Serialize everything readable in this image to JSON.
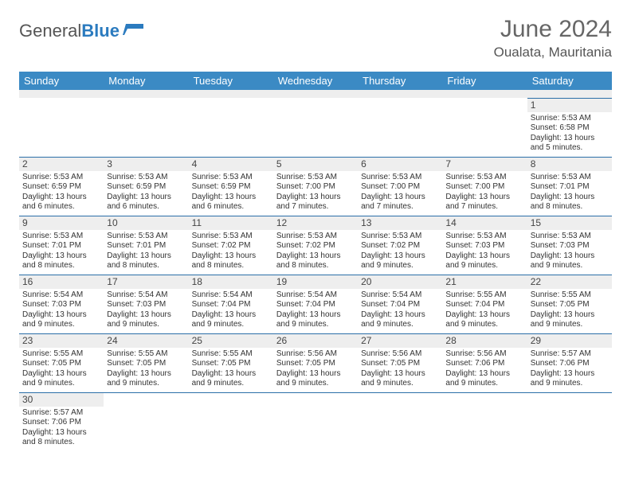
{
  "logo": {
    "text1": "General",
    "text2": "Blue"
  },
  "header": {
    "title": "June 2024",
    "location": "Oualata, Mauritania"
  },
  "colors": {
    "header_bg": "#3b8ac4",
    "header_text": "#ffffff",
    "row_divider": "#2b6fa8",
    "daynum_bg": "#eeeeee",
    "text": "#333333",
    "logo_blue": "#2b7bbf"
  },
  "day_headers": [
    "Sunday",
    "Monday",
    "Tuesday",
    "Wednesday",
    "Thursday",
    "Friday",
    "Saturday"
  ],
  "weeks": [
    [
      null,
      null,
      null,
      null,
      null,
      null,
      {
        "n": "1",
        "sr": "Sunrise: 5:53 AM",
        "ss": "Sunset: 6:58 PM",
        "d1": "Daylight: 13 hours",
        "d2": "and 5 minutes."
      }
    ],
    [
      {
        "n": "2",
        "sr": "Sunrise: 5:53 AM",
        "ss": "Sunset: 6:59 PM",
        "d1": "Daylight: 13 hours",
        "d2": "and 6 minutes."
      },
      {
        "n": "3",
        "sr": "Sunrise: 5:53 AM",
        "ss": "Sunset: 6:59 PM",
        "d1": "Daylight: 13 hours",
        "d2": "and 6 minutes."
      },
      {
        "n": "4",
        "sr": "Sunrise: 5:53 AM",
        "ss": "Sunset: 6:59 PM",
        "d1": "Daylight: 13 hours",
        "d2": "and 6 minutes."
      },
      {
        "n": "5",
        "sr": "Sunrise: 5:53 AM",
        "ss": "Sunset: 7:00 PM",
        "d1": "Daylight: 13 hours",
        "d2": "and 7 minutes."
      },
      {
        "n": "6",
        "sr": "Sunrise: 5:53 AM",
        "ss": "Sunset: 7:00 PM",
        "d1": "Daylight: 13 hours",
        "d2": "and 7 minutes."
      },
      {
        "n": "7",
        "sr": "Sunrise: 5:53 AM",
        "ss": "Sunset: 7:00 PM",
        "d1": "Daylight: 13 hours",
        "d2": "and 7 minutes."
      },
      {
        "n": "8",
        "sr": "Sunrise: 5:53 AM",
        "ss": "Sunset: 7:01 PM",
        "d1": "Daylight: 13 hours",
        "d2": "and 8 minutes."
      }
    ],
    [
      {
        "n": "9",
        "sr": "Sunrise: 5:53 AM",
        "ss": "Sunset: 7:01 PM",
        "d1": "Daylight: 13 hours",
        "d2": "and 8 minutes."
      },
      {
        "n": "10",
        "sr": "Sunrise: 5:53 AM",
        "ss": "Sunset: 7:01 PM",
        "d1": "Daylight: 13 hours",
        "d2": "and 8 minutes."
      },
      {
        "n": "11",
        "sr": "Sunrise: 5:53 AM",
        "ss": "Sunset: 7:02 PM",
        "d1": "Daylight: 13 hours",
        "d2": "and 8 minutes."
      },
      {
        "n": "12",
        "sr": "Sunrise: 5:53 AM",
        "ss": "Sunset: 7:02 PM",
        "d1": "Daylight: 13 hours",
        "d2": "and 8 minutes."
      },
      {
        "n": "13",
        "sr": "Sunrise: 5:53 AM",
        "ss": "Sunset: 7:02 PM",
        "d1": "Daylight: 13 hours",
        "d2": "and 9 minutes."
      },
      {
        "n": "14",
        "sr": "Sunrise: 5:53 AM",
        "ss": "Sunset: 7:03 PM",
        "d1": "Daylight: 13 hours",
        "d2": "and 9 minutes."
      },
      {
        "n": "15",
        "sr": "Sunrise: 5:53 AM",
        "ss": "Sunset: 7:03 PM",
        "d1": "Daylight: 13 hours",
        "d2": "and 9 minutes."
      }
    ],
    [
      {
        "n": "16",
        "sr": "Sunrise: 5:54 AM",
        "ss": "Sunset: 7:03 PM",
        "d1": "Daylight: 13 hours",
        "d2": "and 9 minutes."
      },
      {
        "n": "17",
        "sr": "Sunrise: 5:54 AM",
        "ss": "Sunset: 7:03 PM",
        "d1": "Daylight: 13 hours",
        "d2": "and 9 minutes."
      },
      {
        "n": "18",
        "sr": "Sunrise: 5:54 AM",
        "ss": "Sunset: 7:04 PM",
        "d1": "Daylight: 13 hours",
        "d2": "and 9 minutes."
      },
      {
        "n": "19",
        "sr": "Sunrise: 5:54 AM",
        "ss": "Sunset: 7:04 PM",
        "d1": "Daylight: 13 hours",
        "d2": "and 9 minutes."
      },
      {
        "n": "20",
        "sr": "Sunrise: 5:54 AM",
        "ss": "Sunset: 7:04 PM",
        "d1": "Daylight: 13 hours",
        "d2": "and 9 minutes."
      },
      {
        "n": "21",
        "sr": "Sunrise: 5:55 AM",
        "ss": "Sunset: 7:04 PM",
        "d1": "Daylight: 13 hours",
        "d2": "and 9 minutes."
      },
      {
        "n": "22",
        "sr": "Sunrise: 5:55 AM",
        "ss": "Sunset: 7:05 PM",
        "d1": "Daylight: 13 hours",
        "d2": "and 9 minutes."
      }
    ],
    [
      {
        "n": "23",
        "sr": "Sunrise: 5:55 AM",
        "ss": "Sunset: 7:05 PM",
        "d1": "Daylight: 13 hours",
        "d2": "and 9 minutes."
      },
      {
        "n": "24",
        "sr": "Sunrise: 5:55 AM",
        "ss": "Sunset: 7:05 PM",
        "d1": "Daylight: 13 hours",
        "d2": "and 9 minutes."
      },
      {
        "n": "25",
        "sr": "Sunrise: 5:55 AM",
        "ss": "Sunset: 7:05 PM",
        "d1": "Daylight: 13 hours",
        "d2": "and 9 minutes."
      },
      {
        "n": "26",
        "sr": "Sunrise: 5:56 AM",
        "ss": "Sunset: 7:05 PM",
        "d1": "Daylight: 13 hours",
        "d2": "and 9 minutes."
      },
      {
        "n": "27",
        "sr": "Sunrise: 5:56 AM",
        "ss": "Sunset: 7:05 PM",
        "d1": "Daylight: 13 hours",
        "d2": "and 9 minutes."
      },
      {
        "n": "28",
        "sr": "Sunrise: 5:56 AM",
        "ss": "Sunset: 7:06 PM",
        "d1": "Daylight: 13 hours",
        "d2": "and 9 minutes."
      },
      {
        "n": "29",
        "sr": "Sunrise: 5:57 AM",
        "ss": "Sunset: 7:06 PM",
        "d1": "Daylight: 13 hours",
        "d2": "and 9 minutes."
      }
    ],
    [
      {
        "n": "30",
        "sr": "Sunrise: 5:57 AM",
        "ss": "Sunset: 7:06 PM",
        "d1": "Daylight: 13 hours",
        "d2": "and 8 minutes."
      },
      null,
      null,
      null,
      null,
      null,
      null
    ]
  ]
}
